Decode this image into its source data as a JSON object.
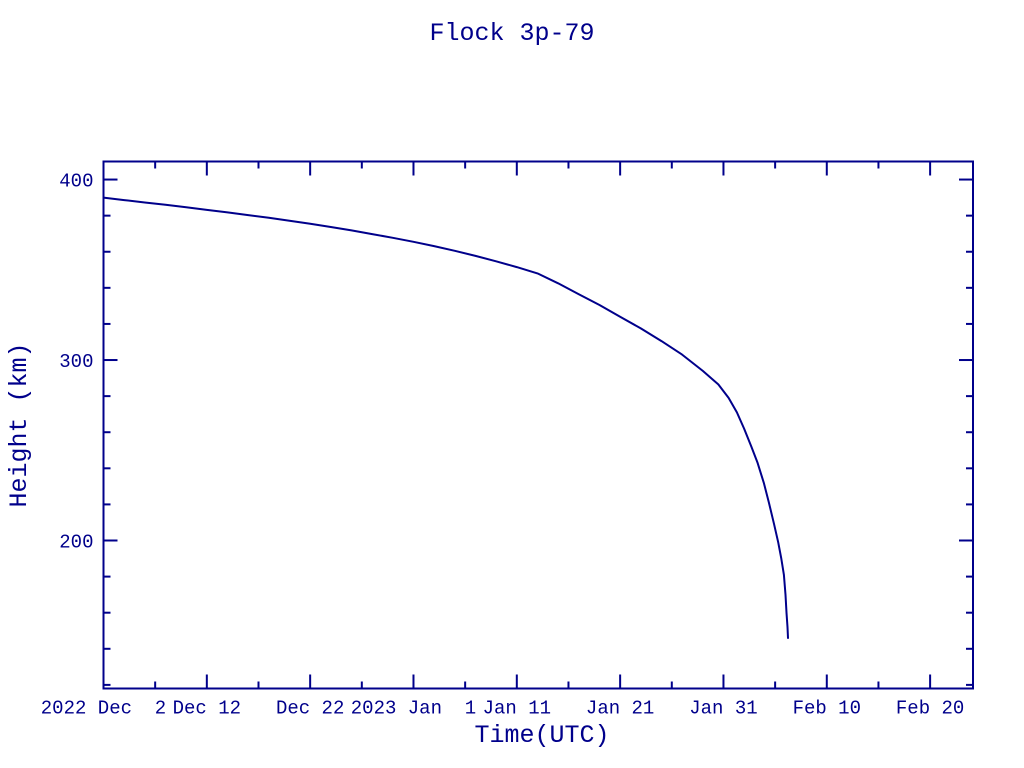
{
  "colors": {
    "ink": "#00008b",
    "background": "#ffffff"
  },
  "chart_data": {
    "type": "line",
    "title": "Flock 3p-79",
    "xlabel": "Time(UTC)",
    "ylabel": "Height (km)",
    "x_epoch_label": "2022 Dec 2",
    "x_unit": "days since 2022 Dec 2 (UTC)",
    "xlim": [
      0,
      84.15
    ],
    "ylim": [
      118,
      410
    ],
    "grid": false,
    "legend": "none",
    "line_color": "#00008b",
    "x_ticks": [
      {
        "day": 0,
        "label": "2022 Dec  2"
      },
      {
        "day": 10,
        "label": "Dec 12"
      },
      {
        "day": 20,
        "label": "Dec 22"
      },
      {
        "day": 30,
        "label": "2023 Jan  1"
      },
      {
        "day": 40,
        "label": "Jan 11"
      },
      {
        "day": 50,
        "label": "Jan 21"
      },
      {
        "day": 60,
        "label": "Jan 31"
      },
      {
        "day": 70,
        "label": "Feb 10"
      },
      {
        "day": 80,
        "label": "Feb 20"
      }
    ],
    "x_minor_step_days": 5,
    "y_ticks": [
      {
        "value": 200,
        "label": "200"
      },
      {
        "value": 300,
        "label": "300"
      },
      {
        "value": 400,
        "label": "400"
      }
    ],
    "y_minor_step": 20,
    "series": [
      {
        "name": "height_km",
        "points": [
          [
            0,
            390
          ],
          [
            2,
            388.6
          ],
          [
            4,
            387.3
          ],
          [
            6,
            386
          ],
          [
            8,
            384.6
          ],
          [
            10,
            383.2
          ],
          [
            12,
            381.8
          ],
          [
            14,
            380.3
          ],
          [
            16,
            378.8
          ],
          [
            18,
            377.2
          ],
          [
            20,
            375.5
          ],
          [
            22,
            373.7
          ],
          [
            24,
            371.8
          ],
          [
            26,
            369.8
          ],
          [
            28,
            367.7
          ],
          [
            30,
            365.5
          ],
          [
            32,
            363.1
          ],
          [
            34,
            360.5
          ],
          [
            36,
            357.7
          ],
          [
            38,
            354.7
          ],
          [
            40,
            351.5
          ],
          [
            42,
            348
          ],
          [
            44,
            342.5
          ],
          [
            46,
            336.5
          ],
          [
            48,
            330.5
          ],
          [
            50,
            324
          ],
          [
            52,
            317.5
          ],
          [
            54,
            310.5
          ],
          [
            56,
            303
          ],
          [
            58,
            294
          ],
          [
            59.5,
            286.5
          ],
          [
            60.5,
            279
          ],
          [
            61.3,
            271
          ],
          [
            62,
            262
          ],
          [
            62.7,
            252
          ],
          [
            63.3,
            243
          ],
          [
            63.9,
            232
          ],
          [
            64.4,
            221
          ],
          [
            64.9,
            209
          ],
          [
            65.3,
            199
          ],
          [
            65.6,
            190
          ],
          [
            65.85,
            181
          ],
          [
            66.0,
            170
          ],
          [
            66.1,
            160
          ],
          [
            66.2,
            152
          ],
          [
            66.25,
            146
          ]
        ]
      }
    ]
  }
}
